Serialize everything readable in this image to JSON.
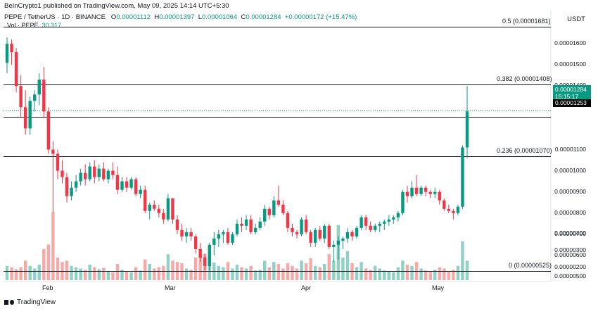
{
  "header": {
    "credit": "BeInCrypto1 published on TradingView.com, May 09, 2025 14:14 UTC+5:30",
    "symbol": "PEPE / TetherUS · 1D · BINANCE",
    "o_label": "O",
    "o_value": "0.00001112",
    "h_label": "H",
    "h_value": "0.00001397",
    "l_label": "L",
    "l_value": "0.00001064",
    "c_label": "C",
    "c_value": "0.00001284",
    "change": "+0.00000172 (+15.47%)"
  },
  "volume_legend": {
    "label": "Vol · PEPE",
    "value": "30.317"
  },
  "currency": "USDT",
  "price_axis": [
    "0.00001600",
    "0.00001500",
    "0.00001400",
    "0.00001100",
    "0.00001000",
    "0.00000900",
    "0.00000800",
    "0.00000700",
    "0.00000600",
    "0.00000500",
    "0.00000400",
    "0.00000300",
    "0.00000200"
  ],
  "fib_levels": [
    {
      "label": "0.5 (0.00001681)",
      "price": 1.681e-05
    },
    {
      "label": "0.382 (0.00001408)",
      "price": 1.408e-05
    },
    {
      "label": "0.236 (0.00001070)",
      "price": 1.07e-05
    },
    {
      "label": "0 (0.00000525)",
      "price": 5.25e-06
    }
  ],
  "current_price": {
    "value": "0.00001284",
    "countdown": "15:15:17",
    "color": "#089981"
  },
  "level_tag": "0.00001253",
  "time_axis": [
    "Feb",
    "Mar",
    "Apr",
    "May"
  ],
  "brand": "TradingView",
  "colors": {
    "up": "#089981",
    "down": "#f23645",
    "vol_up": "#8fd1c4",
    "vol_down": "#f7a9a7"
  },
  "chart_data": {
    "type": "candlestick",
    "symbol": "PEPE / TetherUS",
    "interval": "1D",
    "ylim": [
      4.9e-06,
      1.72e-05
    ],
    "candles": [
      {
        "o": 1.51e-05,
        "h": 1.63e-05,
        "l": 1.46e-05,
        "c": 1.6e-05,
        "v": 22
      },
      {
        "o": 1.6e-05,
        "h": 1.62e-05,
        "l": 1.5e-05,
        "c": 1.56e-05,
        "v": 20
      },
      {
        "o": 1.56e-05,
        "h": 1.58e-05,
        "l": 1.37e-05,
        "c": 1.4e-05,
        "v": 17
      },
      {
        "o": 1.4e-05,
        "h": 1.45e-05,
        "l": 1.25e-05,
        "c": 1.3e-05,
        "v": 20
      },
      {
        "o": 1.3e-05,
        "h": 1.38e-05,
        "l": 1.17e-05,
        "c": 1.2e-05,
        "v": 30
      },
      {
        "o": 1.2e-05,
        "h": 1.35e-05,
        "l": 1.17e-05,
        "c": 1.33e-05,
        "v": 22
      },
      {
        "o": 1.33e-05,
        "h": 1.38e-05,
        "l": 1.28e-05,
        "c": 1.36e-05,
        "v": 18
      },
      {
        "o": 1.36e-05,
        "h": 1.46e-05,
        "l": 1.31e-05,
        "c": 1.43e-05,
        "v": 24
      },
      {
        "o": 1.43e-05,
        "h": 1.49e-05,
        "l": 1.25e-05,
        "c": 1.28e-05,
        "v": 48
      },
      {
        "o": 1.28e-05,
        "h": 1.3e-05,
        "l": 1.08e-05,
        "c": 1.1e-05,
        "v": 55
      },
      {
        "o": 1.1e-05,
        "h": 1.14e-05,
        "l": 8e-06,
        "c": 1.08e-05,
        "v": 105
      },
      {
        "o": 1.08e-05,
        "h": 1.1e-05,
        "l": 9.6e-06,
        "c": 1e-05,
        "v": 35
      },
      {
        "o": 1e-05,
        "h": 1.05e-05,
        "l": 9.4e-06,
        "c": 9.7e-06,
        "v": 28
      },
      {
        "o": 9.7e-06,
        "h": 9.9e-06,
        "l": 8.5e-06,
        "c": 8.8e-06,
        "v": 30
      },
      {
        "o": 8.8e-06,
        "h": 9.5e-06,
        "l": 8.6e-06,
        "c": 9.2e-06,
        "v": 22
      },
      {
        "o": 9.2e-06,
        "h": 9.8e-06,
        "l": 9e-06,
        "c": 9.5e-06,
        "v": 20
      },
      {
        "o": 9.5e-06,
        "h": 1.01e-05,
        "l": 9.3e-06,
        "c": 9.9e-06,
        "v": 18
      },
      {
        "o": 9.9e-06,
        "h": 1.03e-05,
        "l": 9.3e-06,
        "c": 9.6e-06,
        "v": 16
      },
      {
        "o": 9.6e-06,
        "h": 1.04e-05,
        "l": 9.5e-06,
        "c": 1.02e-05,
        "v": 24
      },
      {
        "o": 1.02e-05,
        "h": 1.05e-05,
        "l": 9.4e-06,
        "c": 9.7e-06,
        "v": 20
      },
      {
        "o": 9.7e-06,
        "h": 1.03e-05,
        "l": 9.5e-06,
        "c": 1.01e-05,
        "v": 17
      },
      {
        "o": 1.01e-05,
        "h": 1.04e-05,
        "l": 9.5e-06,
        "c": 9.6e-06,
        "v": 19
      },
      {
        "o": 9.6e-06,
        "h": 1.01e-05,
        "l": 9.4e-06,
        "c": 1e-05,
        "v": 14
      },
      {
        "o": 1e-05,
        "h": 1.04e-05,
        "l": 9.6e-06,
        "c": 9.8e-06,
        "v": 12
      },
      {
        "o": 9.8e-06,
        "h": 1.02e-05,
        "l": 8.9e-06,
        "c": 9.1e-06,
        "v": 25
      },
      {
        "o": 9.1e-06,
        "h": 9.7e-06,
        "l": 9e-06,
        "c": 9.5e-06,
        "v": 16
      },
      {
        "o": 9.5e-06,
        "h": 9.7e-06,
        "l": 9e-06,
        "c": 9.2e-06,
        "v": 14
      },
      {
        "o": 9.2e-06,
        "h": 9.7e-06,
        "l": 9.1e-06,
        "c": 9.6e-06,
        "v": 12
      },
      {
        "o": 9.6e-06,
        "h": 9.7e-06,
        "l": 8.8e-06,
        "c": 8.9e-06,
        "v": 20
      },
      {
        "o": 8.9e-06,
        "h": 9.3e-06,
        "l": 8.7e-06,
        "c": 9.1e-06,
        "v": 15
      },
      {
        "o": 9.1e-06,
        "h": 9.3e-06,
        "l": 8e-06,
        "c": 8.1e-06,
        "v": 32
      },
      {
        "o": 8.1e-06,
        "h": 8.5e-06,
        "l": 7.7e-06,
        "c": 8.4e-06,
        "v": 25
      },
      {
        "o": 8.4e-06,
        "h": 8.6e-06,
        "l": 8.1e-06,
        "c": 8.2e-06,
        "v": 18
      },
      {
        "o": 8.2e-06,
        "h": 8.4e-06,
        "l": 7.8e-06,
        "c": 8e-06,
        "v": 20
      },
      {
        "o": 8e-06,
        "h": 8.2e-06,
        "l": 7.5e-06,
        "c": 7.7e-06,
        "v": 22
      },
      {
        "o": 7.7e-06,
        "h": 8.9e-06,
        "l": 7.6e-06,
        "c": 8.7e-06,
        "v": 40
      },
      {
        "o": 8.7e-06,
        "h": 8.7e-06,
        "l": 7.5e-06,
        "c": 7.7e-06,
        "v": 30
      },
      {
        "o": 7.7e-06,
        "h": 7.9e-06,
        "l": 7e-06,
        "c": 7.2e-06,
        "v": 28
      },
      {
        "o": 7.2e-06,
        "h": 7.5e-06,
        "l": 6.7e-06,
        "c": 6.9e-06,
        "v": 26
      },
      {
        "o": 6.9e-06,
        "h": 7.3e-06,
        "l": 6.6e-06,
        "c": 7.1e-06,
        "v": 18
      },
      {
        "o": 7.1e-06,
        "h": 7.3e-06,
        "l": 6.7e-06,
        "c": 6.9e-06,
        "v": 16
      },
      {
        "o": 6.9e-06,
        "h": 7e-06,
        "l": 6.1e-06,
        "c": 6.3e-06,
        "v": 35
      },
      {
        "o": 6.3e-06,
        "h": 6.6e-06,
        "l": 5.7e-06,
        "c": 5.9e-06,
        "v": 38
      },
      {
        "o": 5.9e-06,
        "h": 6.1e-06,
        "l": 5.3e-06,
        "c": 5.5e-06,
        "v": 40
      },
      {
        "o": 5.5e-06,
        "h": 6.6e-06,
        "l": 5.3e-06,
        "c": 6.5e-06,
        "v": 34
      },
      {
        "o": 6.5e-06,
        "h": 7.1e-06,
        "l": 6e-06,
        "c": 6.8e-06,
        "v": 27
      },
      {
        "o": 6.8e-06,
        "h": 7.2e-06,
        "l": 6.4e-06,
        "c": 7e-06,
        "v": 22
      },
      {
        "o": 7e-06,
        "h": 7.2e-06,
        "l": 6.6e-06,
        "c": 7.1e-06,
        "v": 20
      },
      {
        "o": 7.1e-06,
        "h": 7.3e-06,
        "l": 6.5e-06,
        "c": 6.6e-06,
        "v": 28
      },
      {
        "o": 6.6e-06,
        "h": 7.1e-06,
        "l": 6.5e-06,
        "c": 7e-06,
        "v": 18
      },
      {
        "o": 7e-06,
        "h": 7.7e-06,
        "l": 6.9e-06,
        "c": 7.5e-06,
        "v": 24
      },
      {
        "o": 7.5e-06,
        "h": 7.8e-06,
        "l": 7.1e-06,
        "c": 7.4e-06,
        "v": 20
      },
      {
        "o": 7.4e-06,
        "h": 7.9e-06,
        "l": 7.2e-06,
        "c": 7.7e-06,
        "v": 18
      },
      {
        "o": 7.7e-06,
        "h": 7.9e-06,
        "l": 7e-06,
        "c": 7.1e-06,
        "v": 22
      },
      {
        "o": 7.1e-06,
        "h": 7.5e-06,
        "l": 7e-06,
        "c": 7.3e-06,
        "v": 15
      },
      {
        "o": 7.3e-06,
        "h": 7.8e-06,
        "l": 7.2e-06,
        "c": 7.6e-06,
        "v": 16
      },
      {
        "o": 7.6e-06,
        "h": 8.4e-06,
        "l": 7.4e-06,
        "c": 8.2e-06,
        "v": 30
      },
      {
        "o": 8.2e-06,
        "h": 8.3e-06,
        "l": 7.7e-06,
        "c": 7.9e-06,
        "v": 20
      },
      {
        "o": 7.9e-06,
        "h": 8.8e-06,
        "l": 7.8e-06,
        "c": 8.6e-06,
        "v": 28
      },
      {
        "o": 8.6e-06,
        "h": 9.3e-06,
        "l": 8.3e-06,
        "c": 8.4e-06,
        "v": 25
      },
      {
        "o": 8.4e-06,
        "h": 8.6e-06,
        "l": 7.9e-06,
        "c": 8e-06,
        "v": 18
      },
      {
        "o": 8e-06,
        "h": 8.1e-06,
        "l": 7.1e-06,
        "c": 7.3e-06,
        "v": 26
      },
      {
        "o": 7.3e-06,
        "h": 7.5e-06,
        "l": 6.9e-06,
        "c": 7.1e-06,
        "v": 22
      },
      {
        "o": 7.1e-06,
        "h": 7.2e-06,
        "l": 6.8e-06,
        "c": 7e-06,
        "v": 18
      },
      {
        "o": 7e-06,
        "h": 7.8e-06,
        "l": 6.9e-06,
        "c": 7.7e-06,
        "v": 30
      },
      {
        "o": 7.7e-06,
        "h": 7.9e-06,
        "l": 7e-06,
        "c": 7.1e-06,
        "v": 26
      },
      {
        "o": 7.1e-06,
        "h": 7.2e-06,
        "l": 6.4e-06,
        "c": 6.6e-06,
        "v": 34
      },
      {
        "o": 6.6e-06,
        "h": 7.3e-06,
        "l": 6.4e-06,
        "c": 7.2e-06,
        "v": 22
      },
      {
        "o": 7.2e-06,
        "h": 7.4e-06,
        "l": 6.7e-06,
        "c": 6.8e-06,
        "v": 20
      },
      {
        "o": 6.8e-06,
        "h": 7.5e-06,
        "l": 6.6e-06,
        "c": 7.4e-06,
        "v": 25
      },
      {
        "o": 7.4e-06,
        "h": 7.5e-06,
        "l": 6.3e-06,
        "c": 6.4e-06,
        "v": 40
      },
      {
        "o": 6.4e-06,
        "h": 6.7e-06,
        "l": 5.7e-06,
        "c": 6.5e-06,
        "v": 30
      },
      {
        "o": 6.5e-06,
        "h": 6.9e-06,
        "l": 5.8e-06,
        "c": 6.7e-06,
        "v": 85
      },
      {
        "o": 6.7e-06,
        "h": 6.9e-06,
        "l": 6.3e-06,
        "c": 6.8e-06,
        "v": 35
      },
      {
        "o": 6.8e-06,
        "h": 7.3e-06,
        "l": 6.6e-06,
        "c": 7.1e-06,
        "v": 45
      },
      {
        "o": 7.1e-06,
        "h": 7.2e-06,
        "l": 6.7e-06,
        "c": 6.9e-06,
        "v": 26
      },
      {
        "o": 6.9e-06,
        "h": 7.4e-06,
        "l": 6.8e-06,
        "c": 7.3e-06,
        "v": 20
      },
      {
        "o": 7.3e-06,
        "h": 7.9e-06,
        "l": 7.2e-06,
        "c": 7.8e-06,
        "v": 28
      },
      {
        "o": 7.8e-06,
        "h": 7.9e-06,
        "l": 7.2e-06,
        "c": 7.4e-06,
        "v": 18
      },
      {
        "o": 7.4e-06,
        "h": 7.6e-06,
        "l": 7.1e-06,
        "c": 7.2e-06,
        "v": 16
      },
      {
        "o": 7.2e-06,
        "h": 7.5e-06,
        "l": 7.1e-06,
        "c": 7.4e-06,
        "v": 22
      },
      {
        "o": 7.4e-06,
        "h": 7.6e-06,
        "l": 7.1e-06,
        "c": 7.5e-06,
        "v": 18
      },
      {
        "o": 7.5e-06,
        "h": 7.7e-06,
        "l": 7.2e-06,
        "c": 7.6e-06,
        "v": 15
      },
      {
        "o": 7.6e-06,
        "h": 7.9e-06,
        "l": 7.4e-06,
        "c": 7.7e-06,
        "v": 14
      },
      {
        "o": 7.7e-06,
        "h": 7.9e-06,
        "l": 7.5e-06,
        "c": 7.8e-06,
        "v": 12
      },
      {
        "o": 7.8e-06,
        "h": 8.1e-06,
        "l": 7.6e-06,
        "c": 8e-06,
        "v": 20
      },
      {
        "o": 8e-06,
        "h": 9.1e-06,
        "l": 7.9e-06,
        "c": 9e-06,
        "v": 30
      },
      {
        "o": 9e-06,
        "h": 9.3e-06,
        "l": 8.5e-06,
        "c": 8.8e-06,
        "v": 24
      },
      {
        "o": 8.8e-06,
        "h": 9.5e-06,
        "l": 8.7e-06,
        "c": 9.2e-06,
        "v": 22
      },
      {
        "o": 9.2e-06,
        "h": 9.8e-06,
        "l": 8.8e-06,
        "c": 8.9e-06,
        "v": 28
      },
      {
        "o": 8.9e-06,
        "h": 9.3e-06,
        "l": 8.8e-06,
        "c": 9.2e-06,
        "v": 18
      },
      {
        "o": 9.2e-06,
        "h": 9.3e-06,
        "l": 8.8e-06,
        "c": 9e-06,
        "v": 15
      },
      {
        "o": 9e-06,
        "h": 9.1e-06,
        "l": 8.7e-06,
        "c": 8.9e-06,
        "v": 14
      },
      {
        "o": 8.9e-06,
        "h": 9.2e-06,
        "l": 8.7e-06,
        "c": 9e-06,
        "v": 16
      },
      {
        "o": 9e-06,
        "h": 9.1e-06,
        "l": 8.4e-06,
        "c": 8.6e-06,
        "v": 20
      },
      {
        "o": 8.6e-06,
        "h": 8.7e-06,
        "l": 8.1e-06,
        "c": 8.2e-06,
        "v": 18
      },
      {
        "o": 8.2e-06,
        "h": 8.4e-06,
        "l": 8e-06,
        "c": 8.1e-06,
        "v": 14
      },
      {
        "o": 8.1e-06,
        "h": 8.2e-06,
        "l": 7.7e-06,
        "c": 8e-06,
        "v": 16
      },
      {
        "o": 8e-06,
        "h": 8.4e-06,
        "l": 7.9e-06,
        "c": 8.3e-06,
        "v": 22
      },
      {
        "o": 8.3e-06,
        "h": 1.12e-05,
        "l": 8.2e-06,
        "c": 1.11e-05,
        "v": 60
      },
      {
        "o": 1.11e-05,
        "h": 1.4e-05,
        "l": 1.06e-05,
        "c": 1.28e-05,
        "v": 30
      }
    ]
  }
}
